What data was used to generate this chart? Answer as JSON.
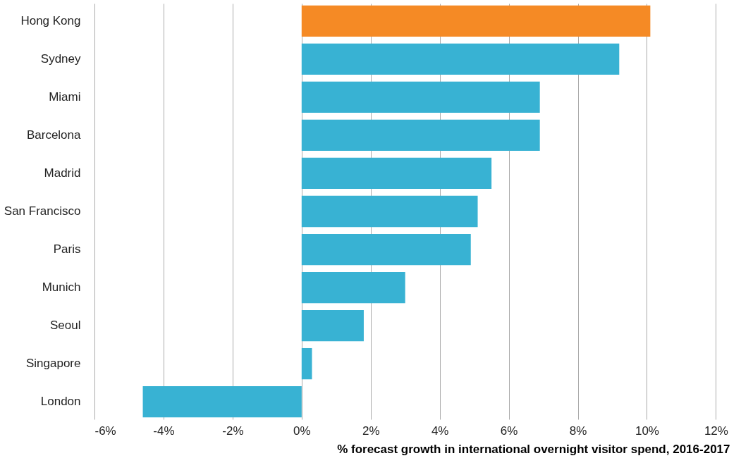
{
  "chart_data": {
    "type": "bar",
    "orientation": "horizontal",
    "xlabel": "% forecast growth in international overnight visitor spend, 2016-2017",
    "categories": [
      "Hong Kong",
      "Sydney",
      "Miami",
      "Barcelona",
      "Madrid",
      "San Francisco",
      "Paris",
      "Munich",
      "Seoul",
      "Singapore",
      "London"
    ],
    "values": [
      10.1,
      9.2,
      6.9,
      6.9,
      5.5,
      5.1,
      4.9,
      3.0,
      1.8,
      0.3,
      -4.6
    ],
    "colors": [
      "#f58a25",
      "#38b2d3",
      "#38b2d3",
      "#38b2d3",
      "#38b2d3",
      "#38b2d3",
      "#38b2d3",
      "#38b2d3",
      "#38b2d3",
      "#38b2d3",
      "#38b2d3"
    ],
    "xlim": [
      -6,
      12.4
    ],
    "xticks": [
      {
        "value": -6,
        "label": "-6%"
      },
      {
        "value": -4,
        "label": "-4%"
      },
      {
        "value": -2,
        "label": "-2%"
      },
      {
        "value": 0,
        "label": "0%"
      },
      {
        "value": 2,
        "label": "2%"
      },
      {
        "value": 4,
        "label": "4%"
      },
      {
        "value": 6,
        "label": "6%"
      },
      {
        "value": 8,
        "label": "8%"
      },
      {
        "value": 10,
        "label": "10%"
      },
      {
        "value": 12,
        "label": "12%"
      }
    ],
    "grid": "x"
  }
}
